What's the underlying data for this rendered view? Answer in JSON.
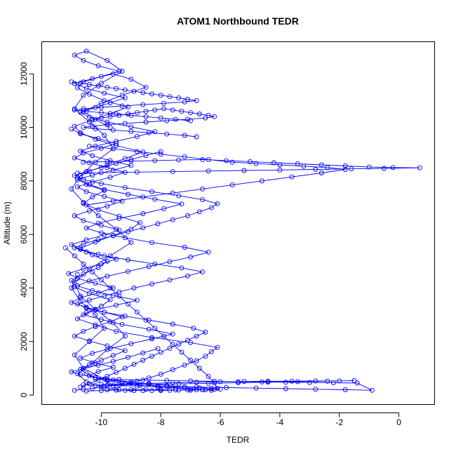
{
  "chart_data": {
    "type": "scatter",
    "title": "ATOM1 Northbound TEDR",
    "xlabel": "TEDR",
    "ylabel": "Altitude (m)",
    "xlim": [
      -12.0,
      1.2
    ],
    "ylim": [
      -350,
      13200
    ],
    "x_ticks": [
      -10,
      -8,
      -6,
      -4,
      -2,
      0
    ],
    "x_tick_labels": [
      "-10",
      "-8",
      "-6",
      "-4",
      "-2",
      "0"
    ],
    "y_ticks": [
      0,
      2000,
      4000,
      6000,
      8000,
      10000,
      12000
    ],
    "y_tick_labels": [
      "0",
      "2000",
      "4000",
      "6000",
      "8000",
      "10000",
      "12000"
    ],
    "grid": false,
    "legend": "none",
    "marker": "open-circle",
    "connected": true,
    "color": "#0000ff",
    "series": [
      {
        "x": [
          -10.9,
          -10.6,
          -10.3,
          -9.9,
          -9.6,
          -9.2,
          -8.8,
          -8.4,
          -8.0,
          -7.6,
          -7.2,
          -6.8,
          -6.5,
          -6.3,
          -6.1,
          -7.0,
          -8.3,
          -9.5,
          -10.2,
          -10.8,
          -10.5,
          -10.0,
          -9.7,
          -10.4,
          -10.9,
          -11.0,
          -10.6,
          -10.1,
          -9.8,
          -10.3,
          -10.7,
          -10.2,
          -9.6,
          -9.0,
          -8.7,
          -9.4,
          -10.1,
          -10.6,
          -10.3,
          -9.9,
          -10.5,
          -10.8,
          -10.4,
          -9.8,
          -9.2,
          -8.6,
          -9.5,
          -10.2,
          -10.7,
          -10.9,
          -10.3,
          -9.7,
          -9.1,
          -9.9,
          -10.4,
          -10.8,
          -10.6,
          -10.0,
          -9.4,
          -10.1,
          -10.6,
          -10.9,
          -10.5,
          -9.8,
          -9.3,
          -10.0,
          -10.6,
          -10.9,
          -10.4,
          -9.9,
          -9.6,
          -10.2,
          -10.7,
          -11.0,
          -10.6,
          -10.1,
          -9.5,
          -9.0,
          -9.7,
          -10.4,
          -10.9,
          -10.7,
          -10.2,
          -9.6,
          -9.2,
          -9.8,
          -10.3,
          -10.8,
          -10.5,
          -10.0,
          -9.4,
          -9.9,
          -10.6,
          -10.9,
          -10.4,
          -9.9,
          -10.2,
          -10.7,
          -11.0,
          -10.8
        ],
        "y": [
          180,
          210,
          250,
          300,
          350,
          420,
          520,
          640,
          780,
          950,
          1120,
          1280,
          1450,
          1620,
          1780,
          1960,
          2150,
          2380,
          2620,
          2850,
          3080,
          3320,
          3560,
          3800,
          4040,
          4280,
          4520,
          4760,
          5000,
          5240,
          5480,
          5720,
          5960,
          6200,
          6440,
          6680,
          6920,
          7160,
          7400,
          7640,
          7880,
          8120,
          8360,
          8600,
          8840,
          9080,
          9320,
          9560,
          9800,
          10040,
          10280,
          10520,
          10760,
          11000,
          11240,
          11480,
          11700,
          11900,
          12100,
          12300,
          12500,
          12700,
          12850,
          12500,
          12100,
          11650,
          11200,
          10700,
          10200,
          9700,
          9200,
          8700,
          8200,
          7700,
          7200,
          6700,
          6200,
          5700,
          5200,
          4700,
          4200,
          3700,
          3200,
          2700,
          2200,
          1700,
          1200,
          800,
          500,
          300,
          200,
          600,
          1000,
          1500,
          2000,
          2500,
          3000,
          3500,
          4000,
          4500
        ]
      },
      {
        "x": [
          -10.5,
          -10.0,
          -9.5,
          -9.0,
          -8.5,
          -8.0,
          -7.5,
          -7.0,
          -6.6,
          -7.2,
          -8.1,
          -9.0,
          -9.8,
          -10.4,
          -10.1,
          -9.6,
          -10.2,
          -10.7,
          -10.3,
          -9.7,
          -9.0,
          -8.3,
          -7.6,
          -8.4,
          -9.3,
          -10.0,
          -10.6,
          -10.2,
          -9.5,
          -8.8,
          -9.6,
          -10.3,
          -10.8,
          -10.4,
          -9.8,
          -9.1,
          -8.4,
          -7.7,
          -7.0,
          -6.4,
          -7.2,
          -8.3,
          -9.2,
          -10.0,
          -10.5,
          -10.1,
          -9.4,
          -8.6,
          -7.9,
          -7.3,
          -8.2,
          -9.1,
          -9.9,
          -10.4,
          -10.8,
          -10.3,
          -9.6,
          -9.0,
          -9.7,
          -10.3,
          -10.7,
          -10.2,
          -9.5,
          -8.8,
          -8.2,
          -9.0,
          -9.8,
          -10.4,
          -10.7,
          -10.2,
          -9.7,
          -9.2,
          -9.9,
          -10.5,
          -10.9,
          -10.3,
          -9.6,
          -9.0,
          -8.5,
          -9.3,
          -10.0,
          -10.6,
          -10.2,
          -9.7
        ],
        "y": [
          150,
          170,
          190,
          200,
          210,
          200,
          190,
          180,
          200,
          260,
          340,
          450,
          580,
          720,
          880,
          1040,
          1200,
          1380,
          1560,
          1740,
          1920,
          2100,
          2280,
          2460,
          2640,
          2820,
          3000,
          3180,
          3360,
          3540,
          3720,
          3900,
          4080,
          4260,
          4440,
          4620,
          4800,
          4980,
          5160,
          5340,
          5520,
          5700,
          5880,
          6060,
          6240,
          6420,
          6600,
          6780,
          6960,
          7140,
          7320,
          7500,
          7680,
          7860,
          8040,
          8220,
          8400,
          8580,
          8760,
          8940,
          9120,
          9300,
          9480,
          9660,
          9840,
          10020,
          10200,
          10380,
          10560,
          10740,
          10920,
          11100,
          11280,
          11460,
          11640,
          11820,
          12000,
          11800,
          11500,
          11200,
          10900,
          10600,
          10300,
          10000
        ]
      },
      {
        "x": [
          -11.2,
          -10.9,
          -10.6,
          -10.3,
          -10.0,
          -9.7,
          -9.4,
          -9.1,
          -8.8,
          -8.5,
          -8.2,
          -7.9,
          -7.6,
          -7.3,
          -7.0,
          -6.7,
          -6.4,
          -6.2,
          -6.1,
          -6.3,
          -6.6,
          -7.0,
          -7.5,
          -8.1,
          -8.7,
          -9.3,
          -9.8,
          -10.2,
          -10.5,
          -10.7,
          -10.4,
          -10.0,
          -9.6,
          -9.2,
          -9.8,
          -10.4,
          -10.9,
          -10.6,
          -10.2,
          -9.7,
          -9.3,
          -9.9,
          -10.5,
          -11.0,
          -10.7,
          -10.1,
          -9.6,
          -10.2,
          -10.8,
          -11.1,
          -10.6,
          -10.0,
          -9.5,
          -10.1,
          -10.7,
          -11.0,
          -10.5,
          -9.9,
          -9.4,
          -10.0,
          -10.6,
          -10.9,
          -10.4,
          -9.8,
          -9.3,
          -9.9,
          -10.5,
          -10.8,
          -10.3,
          -9.7,
          -9.2,
          -9.8,
          -10.4,
          -10.9,
          -10.6,
          -10.0,
          -9.5,
          -10.1,
          -10.7,
          -11.0
        ],
        "y": [
          5500,
          5200,
          4900,
          4600,
          4300,
          4000,
          3700,
          3400,
          3100,
          2800,
          2500,
          2200,
          1900,
          1600,
          1300,
          1000,
          700,
          450,
          250,
          180,
          200,
          230,
          260,
          300,
          360,
          440,
          540,
          660,
          800,
          960,
          1130,
          1300,
          1480,
          1660,
          1840,
          2020,
          2200,
          2380,
          2560,
          2740,
          2920,
          3100,
          3280,
          3460,
          3640,
          3820,
          4000,
          4180,
          4360,
          4540,
          4720,
          4900,
          5080,
          5260,
          5440,
          5620,
          5800,
          5980,
          6160,
          6340,
          6520,
          6700,
          6880,
          7060,
          7240,
          7420,
          7600,
          7780,
          7960,
          8140,
          8320,
          8500,
          8680,
          8860,
          9040,
          9220,
          9400,
          9580,
          9760,
          9940
        ]
      },
      {
        "x": [
          -10.7,
          -10.4,
          -10.1,
          -9.8,
          -9.5,
          -9.2,
          -8.9,
          -8.6,
          -8.3,
          -8.0,
          -7.7,
          -7.4,
          -7.1,
          -6.8,
          -6.5,
          -6.9,
          -7.6,
          -8.4,
          -9.2,
          -9.9,
          -10.5,
          -10.8,
          -10.4,
          -9.9,
          -9.4,
          -8.9,
          -8.3,
          -7.7,
          -7.1,
          -6.6,
          -7.3,
          -8.2,
          -9.1,
          -9.9,
          -10.5,
          -10.9,
          -10.6,
          -10.1,
          -9.6,
          -9.1,
          -8.6,
          -8.1,
          -7.6,
          -7.1,
          -6.7,
          -6.3,
          -6.1,
          -6.6,
          -7.4,
          -8.3,
          -9.2,
          -10.0,
          -10.6,
          -10.9,
          -10.5,
          -10.0,
          -9.5,
          -9.0,
          -8.5,
          -8.0
        ],
        "y": [
          300,
          420,
          560,
          700,
          850,
          1000,
          1150,
          1300,
          1450,
          1600,
          1750,
          1900,
          2050,
          2200,
          2350,
          2500,
          2650,
          2800,
          2950,
          3100,
          3250,
          3400,
          3550,
          3700,
          3850,
          4000,
          4150,
          4300,
          4450,
          4600,
          4750,
          4900,
          5050,
          5200,
          5350,
          5500,
          5650,
          5800,
          5950,
          6100,
          6250,
          6400,
          6550,
          6700,
          6850,
          7000,
          7150,
          7300,
          7450,
          7600,
          7750,
          7900,
          8050,
          8200,
          8350,
          8500,
          8650,
          8800,
          8950,
          9100
        ]
      },
      {
        "x": [
          -10.3,
          -10.0,
          -9.7,
          -9.4,
          -9.1,
          -8.8,
          -8.5,
          -8.2,
          -7.9,
          -7.6,
          -7.3,
          -7.0,
          -6.7,
          -6.4,
          -6.2,
          -6.5,
          -7.1,
          -7.8,
          -8.5,
          -9.2,
          -9.8,
          -10.3,
          -10.6,
          -10.2,
          -9.6,
          -9.0,
          -8.4,
          -7.8,
          -7.2,
          -6.8
        ],
        "y": [
          10300,
          10350,
          10400,
          10450,
          10500,
          10550,
          10600,
          10650,
          10700,
          10650,
          10600,
          10550,
          10500,
          10450,
          10400,
          10350,
          10300,
          10250,
          10200,
          10150,
          10100,
          10050,
          10000,
          9950,
          9900,
          9850,
          9800,
          9750,
          9700,
          9650
        ]
      },
      {
        "x": [
          -10.6,
          -9.8,
          -9.0,
          -8.2,
          -7.4,
          -6.6,
          -5.8,
          -5.0,
          -4.2,
          -3.4,
          -2.6,
          -1.8,
          -1.0,
          -0.2,
          0.7,
          -0.5,
          -1.6,
          -2.8,
          -4.0,
          -5.2,
          -6.4,
          -7.6,
          -8.8,
          -10.0,
          -10.8
        ],
        "y": [
          8700,
          8720,
          8740,
          8760,
          8780,
          8800,
          8760,
          8720,
          8680,
          8640,
          8600,
          8560,
          8520,
          8500,
          8490,
          8470,
          8450,
          8430,
          8410,
          8390,
          8370,
          8350,
          8330,
          8310,
          8290
        ]
      },
      {
        "x": [
          -10.4,
          -9.6,
          -8.8,
          -8.0,
          -7.2,
          -6.4,
          -5.6,
          -4.8,
          -4.0,
          -3.2,
          -2.4,
          -1.8,
          -2.6,
          -3.6,
          -4.6,
          -5.6,
          -6.6,
          -7.6,
          -8.6,
          -9.6,
          -10.5
        ],
        "y": [
          9300,
          9200,
          9100,
          9000,
          8900,
          8800,
          8700,
          8650,
          8600,
          8550,
          8500,
          8430,
          8300,
          8150,
          8000,
          7850,
          7700,
          7550,
          7400,
          7250,
          7100
        ]
      },
      {
        "x": [
          -10.2,
          -9.4,
          -8.6,
          -7.8,
          -7.0,
          -6.2,
          -5.4,
          -4.6,
          -3.8,
          -3.0,
          -2.2,
          -1.4,
          -0.9,
          -1.8,
          -2.8,
          -3.8,
          -4.8,
          -5.8,
          -6.8,
          -7.8,
          -8.8,
          -9.8,
          -10.6
        ],
        "y": [
          600,
          580,
          560,
          545,
          530,
          515,
          500,
          490,
          480,
          470,
          460,
          450,
          180,
          200,
          220,
          240,
          260,
          280,
          300,
          320,
          340,
          360,
          380
        ]
      },
      {
        "x": [
          -10.0,
          -9.2,
          -8.4,
          -7.6,
          -6.8,
          -6.0,
          -5.2,
          -4.4,
          -3.6,
          -2.8,
          -2.0,
          -1.5,
          -2.4,
          -3.4,
          -4.4,
          -5.4,
          -6.4,
          -7.4,
          -8.4,
          -9.4,
          -10.2
        ],
        "y": [
          400,
          420,
          440,
          460,
          480,
          500,
          510,
          515,
          520,
          525,
          530,
          540,
          520,
          500,
          480,
          460,
          440,
          420,
          400,
          380,
          360
        ]
      },
      {
        "x": [
          -9.8,
          -9.5,
          -9.2,
          -8.9,
          -8.6,
          -8.3,
          -8.0,
          -7.7,
          -7.4,
          -7.1,
          -6.8,
          -6.5,
          -6.2,
          -6.0,
          -6.3,
          -6.7,
          -7.2,
          -7.8,
          -8.4,
          -9.0,
          -9.6,
          -10.2,
          -10.7,
          -11.0,
          -10.6,
          -10.1,
          -9.6,
          -9.1,
          -8.6,
          -8.1
        ],
        "y": [
          200,
          190,
          180,
          175,
          170,
          170,
          175,
          180,
          185,
          190,
          195,
          200,
          210,
          220,
          240,
          270,
          310,
          360,
          420,
          490,
          570,
          660,
          760,
          870,
          990,
          1120,
          1260,
          1410,
          1570,
          1740
        ]
      },
      {
        "x": [
          -11.0,
          -10.7,
          -10.4,
          -10.1,
          -9.8,
          -9.5,
          -9.2,
          -8.9,
          -8.6,
          -8.3,
          -8.0,
          -7.7,
          -7.4,
          -7.1,
          -6.8,
          -7.2,
          -7.9,
          -8.6,
          -9.3,
          -10.0,
          -10.6,
          -10.9,
          -10.5,
          -10.0,
          -9.5,
          -9.0,
          -8.5,
          -8.0,
          -7.5,
          -7.0
        ],
        "y": [
          11700,
          11650,
          11600,
          11550,
          11500,
          11450,
          11400,
          11350,
          11300,
          11250,
          11200,
          11150,
          11100,
          11050,
          11000,
          10950,
          10900,
          10850,
          10800,
          10750,
          10700,
          10650,
          10600,
          10550,
          10500,
          10450,
          10400,
          10350,
          10300,
          10250
        ]
      }
    ]
  }
}
